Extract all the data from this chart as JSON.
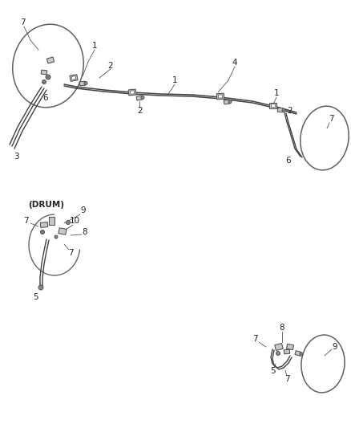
{
  "bg_color": "#ffffff",
  "line_color": "#404040",
  "text_color": "#222222",
  "figsize": [
    4.38,
    5.33
  ],
  "dpi": 100,
  "component_color": "#555555",
  "component_fill": "#c8c8c8"
}
